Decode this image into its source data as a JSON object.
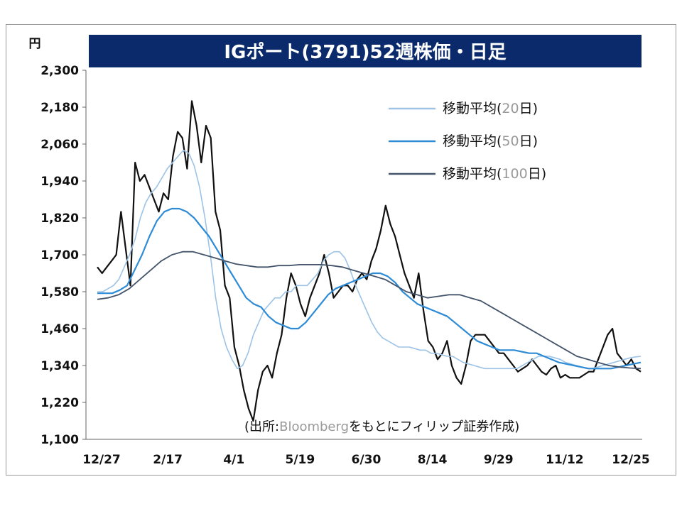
{
  "chart_data": {
    "type": "line",
    "title": "IGポート(3791)52週株価・日足",
    "unit_label": "円",
    "source": "(出所:Bloombergをもとにフィリップ証券作成)",
    "source_parts": [
      "(出所:",
      "Bloomberg",
      "をもとにフィリップ証券作成)"
    ],
    "x_ticks": [
      "12/27",
      "2/17",
      "4/1",
      "5/19",
      "6/30",
      "8/14",
      "9/29",
      "11/12",
      "12/25"
    ],
    "y_ticks": [
      "2,300",
      "2,180",
      "2,060",
      "1,940",
      "1,820",
      "1,700",
      "1,580",
      "1,460",
      "1,340",
      "1,220",
      "1,100"
    ],
    "ylim": [
      1100,
      2300
    ],
    "grid": false,
    "legend_placement": "top-right",
    "colors": {
      "title_bg": "#0b2a6b",
      "price": "#111111",
      "ma20": "#9dc3e6",
      "ma50": "#2e8bd6",
      "ma100": "#44546a"
    },
    "legend": [
      {
        "prefix": "移動平均(",
        "num": "20",
        "suffix": "日)",
        "color": "#9dc3e6"
      },
      {
        "prefix": "移動平均(",
        "num": "50",
        "suffix": "日)",
        "color": "#2e8bd6"
      },
      {
        "prefix": "移動平均(",
        "num": "100",
        "suffix": "日)",
        "color": "#44546a"
      }
    ],
    "series": [
      {
        "key": "price",
        "values": [
          1660,
          1640,
          1660,
          1680,
          1700,
          1840,
          1720,
          1600,
          2000,
          1940,
          1960,
          1920,
          1880,
          1840,
          1900,
          1880,
          2020,
          2100,
          2080,
          1980,
          2200,
          2120,
          2000,
          2120,
          2080,
          1840,
          1780,
          1600,
          1560,
          1400,
          1340,
          1260,
          1200,
          1160,
          1260,
          1320,
          1340,
          1300,
          1380,
          1440,
          1560,
          1640,
          1600,
          1540,
          1500,
          1560,
          1600,
          1640,
          1700,
          1640,
          1560,
          1580,
          1600,
          1600,
          1580,
          1620,
          1640,
          1620,
          1680,
          1720,
          1780,
          1860,
          1800,
          1760,
          1700,
          1640,
          1600,
          1560,
          1640,
          1520,
          1420,
          1400,
          1360,
          1380,
          1420,
          1340,
          1300,
          1280,
          1340,
          1420,
          1440,
          1440,
          1440,
          1420,
          1400,
          1380,
          1380,
          1360,
          1340,
          1320,
          1330,
          1340,
          1360,
          1340,
          1320,
          1310,
          1330,
          1340,
          1300,
          1310,
          1300,
          1300,
          1300,
          1310,
          1320,
          1320,
          1360,
          1400,
          1440,
          1460,
          1380,
          1360,
          1340,
          1360,
          1330,
          1320
        ]
      },
      {
        "key": "ma20",
        "values": [
          1580,
          1580,
          1590,
          1600,
          1620,
          1660,
          1700,
          1750,
          1820,
          1870,
          1900,
          1920,
          1950,
          1980,
          2000,
          2020,
          2040,
          2030,
          1990,
          1920,
          1820,
          1700,
          1560,
          1460,
          1400,
          1360,
          1330,
          1340,
          1380,
          1440,
          1480,
          1520,
          1540,
          1560,
          1560,
          1580,
          1580,
          1600,
          1600,
          1600,
          1620,
          1640,
          1680,
          1700,
          1710,
          1710,
          1690,
          1650,
          1600,
          1560,
          1520,
          1480,
          1450,
          1430,
          1420,
          1410,
          1400,
          1400,
          1400,
          1395,
          1390,
          1390,
          1380,
          1380,
          1375,
          1370,
          1370,
          1360,
          1350,
          1345,
          1340,
          1335,
          1330,
          1330,
          1330,
          1330,
          1330,
          1330,
          1330,
          1340,
          1350,
          1360,
          1370,
          1370,
          1370,
          1365,
          1360,
          1350,
          1345,
          1340,
          1335,
          1330,
          1330,
          1335,
          1340,
          1345,
          1350,
          1355,
          1360,
          1365,
          1368,
          1370
        ]
      },
      {
        "key": "ma50",
        "values": [
          1575,
          1575,
          1575,
          1585,
          1600,
          1650,
          1700,
          1760,
          1810,
          1840,
          1850,
          1850,
          1840,
          1820,
          1790,
          1760,
          1720,
          1680,
          1640,
          1600,
          1560,
          1540,
          1530,
          1500,
          1480,
          1470,
          1460,
          1460,
          1480,
          1510,
          1540,
          1570,
          1590,
          1600,
          1610,
          1620,
          1630,
          1640,
          1640,
          1630,
          1610,
          1580,
          1560,
          1540,
          1530,
          1520,
          1510,
          1500,
          1480,
          1460,
          1440,
          1420,
          1410,
          1400,
          1390,
          1390,
          1390,
          1385,
          1380,
          1380,
          1370,
          1360,
          1350,
          1345,
          1340,
          1335,
          1330,
          1330,
          1330,
          1330,
          1335,
          1340,
          1345,
          1350
        ]
      },
      {
        "key": "ma100",
        "values": [
          1555,
          1560,
          1570,
          1590,
          1620,
          1650,
          1680,
          1700,
          1710,
          1710,
          1700,
          1690,
          1680,
          1670,
          1665,
          1660,
          1660,
          1665,
          1665,
          1668,
          1668,
          1668,
          1665,
          1660,
          1650,
          1640,
          1630,
          1620,
          1600,
          1580,
          1570,
          1560,
          1565,
          1570,
          1570,
          1560,
          1550,
          1530,
          1510,
          1490,
          1470,
          1450,
          1430,
          1410,
          1390,
          1370,
          1360,
          1350,
          1340,
          1335,
          1332,
          1330
        ]
      }
    ]
  }
}
